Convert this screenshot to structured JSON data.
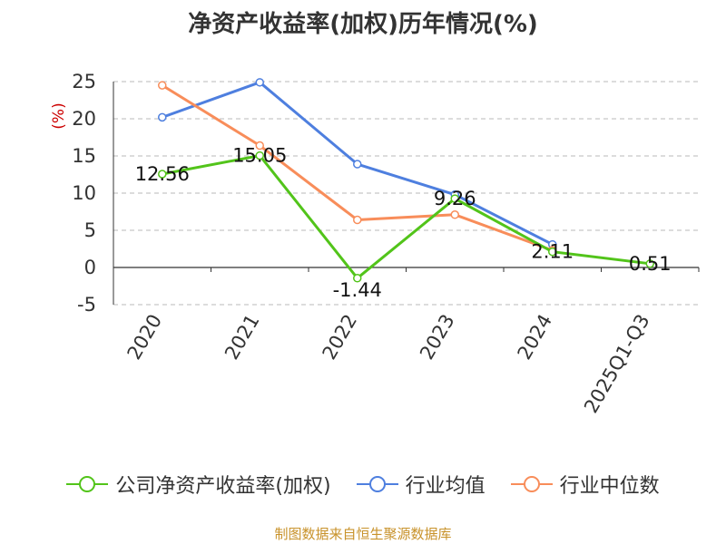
{
  "chart_data": {
    "type": "line",
    "title": "净资产收益率(加权)历年情况(%)",
    "ylabel": "(%)",
    "xlabel": "",
    "categories": [
      "2020",
      "2021",
      "2022",
      "2023",
      "2024",
      "2025Q1-Q3"
    ],
    "ylim": [
      -5,
      25
    ],
    "yticks": [
      -5,
      0,
      5,
      10,
      15,
      20,
      25
    ],
    "series": [
      {
        "name": "公司净资产收益率(加权)",
        "color": "#52c41a",
        "values": [
          12.56,
          15.05,
          -1.44,
          9.26,
          2.11,
          0.51
        ],
        "labels": [
          "12.56",
          "15.05",
          "-1.44",
          "9.26",
          "2.11",
          "0.51"
        ]
      },
      {
        "name": "行业均值",
        "color": "#4e7fdf",
        "values": [
          20.2,
          24.9,
          13.9,
          9.8,
          3.1,
          null
        ]
      },
      {
        "name": "行业中位数",
        "color": "#f88d5a",
        "values": [
          24.5,
          16.4,
          6.4,
          7.1,
          2.3,
          null
        ]
      }
    ],
    "grid": true
  },
  "source": "制图数据来自恒生聚源数据库"
}
